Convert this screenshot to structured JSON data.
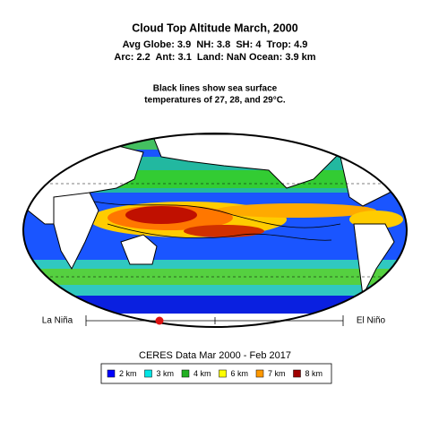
{
  "title": "Cloud Top Altitude March, 2000",
  "stats": [
    "Avg Globe: 3.9  NH: 3.8  SH: 4  Trop: 4.9",
    "Arc: 2.2  Ant: 3.1  Land: NaN Ocean: 3.9 km"
  ],
  "note": [
    "Black lines show sea surface",
    "temperatures of 27, 28, and 29°C."
  ],
  "slider": {
    "left": "La Niña",
    "right": "El Niño"
  },
  "source": "CERES Data Mar 2000 - Feb 2017",
  "legend": [
    {
      "label": "2 km",
      "color": "#0000ff"
    },
    {
      "label": "3 km",
      "color": "#00e5e5"
    },
    {
      "label": "4 km",
      "color": "#22b022"
    },
    {
      "label": "6 km",
      "color": "#ffff00"
    },
    {
      "label": "7 km",
      "color": "#ff9900"
    },
    {
      "label": "8 km",
      "color": "#a00000"
    }
  ]
}
